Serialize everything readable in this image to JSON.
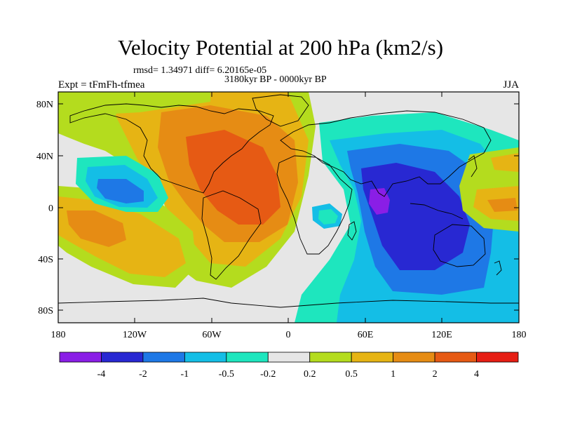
{
  "title": "Velocity Potential at 200 hPa (km2/s)",
  "stats": "rmsd= 1.34971 diff= 6.20165e-05",
  "period": "3180kyr BP - 0000kyr BP",
  "experiment": "Expt = tFmFh-tfmea",
  "season": "JJA",
  "lat_ticks": [
    "80N",
    "40N",
    "0",
    "40S",
    "80S"
  ],
  "lon_ticks": [
    "180",
    "120W",
    "60W",
    "0",
    "60E",
    "120E",
    "180"
  ],
  "colorbar": {
    "labels": [
      "-4",
      "-2",
      "-1",
      "-0.5",
      "-0.2",
      "0.2",
      "0.5",
      "1",
      "2",
      "4"
    ],
    "colors": [
      "#8a1ee6",
      "#2828d2",
      "#1e78e6",
      "#14bee6",
      "#1ee6be",
      "#e6e6e6",
      "#b4dc1e",
      "#e6b414",
      "#e68c14",
      "#e65a14",
      "#e61e14"
    ]
  },
  "map_colors": {
    "ocean_base": "#e6e6e6",
    "c_neg4": "#8a1ee6",
    "c_neg2": "#2828d2",
    "c_neg1": "#1e78e6",
    "c_neg05": "#14bee6",
    "c_neg02": "#1ee6be",
    "c_pos02": "#b4dc1e",
    "c_pos05": "#e6b414",
    "c_pos1": "#e68c14",
    "c_pos2": "#e65a14"
  }
}
